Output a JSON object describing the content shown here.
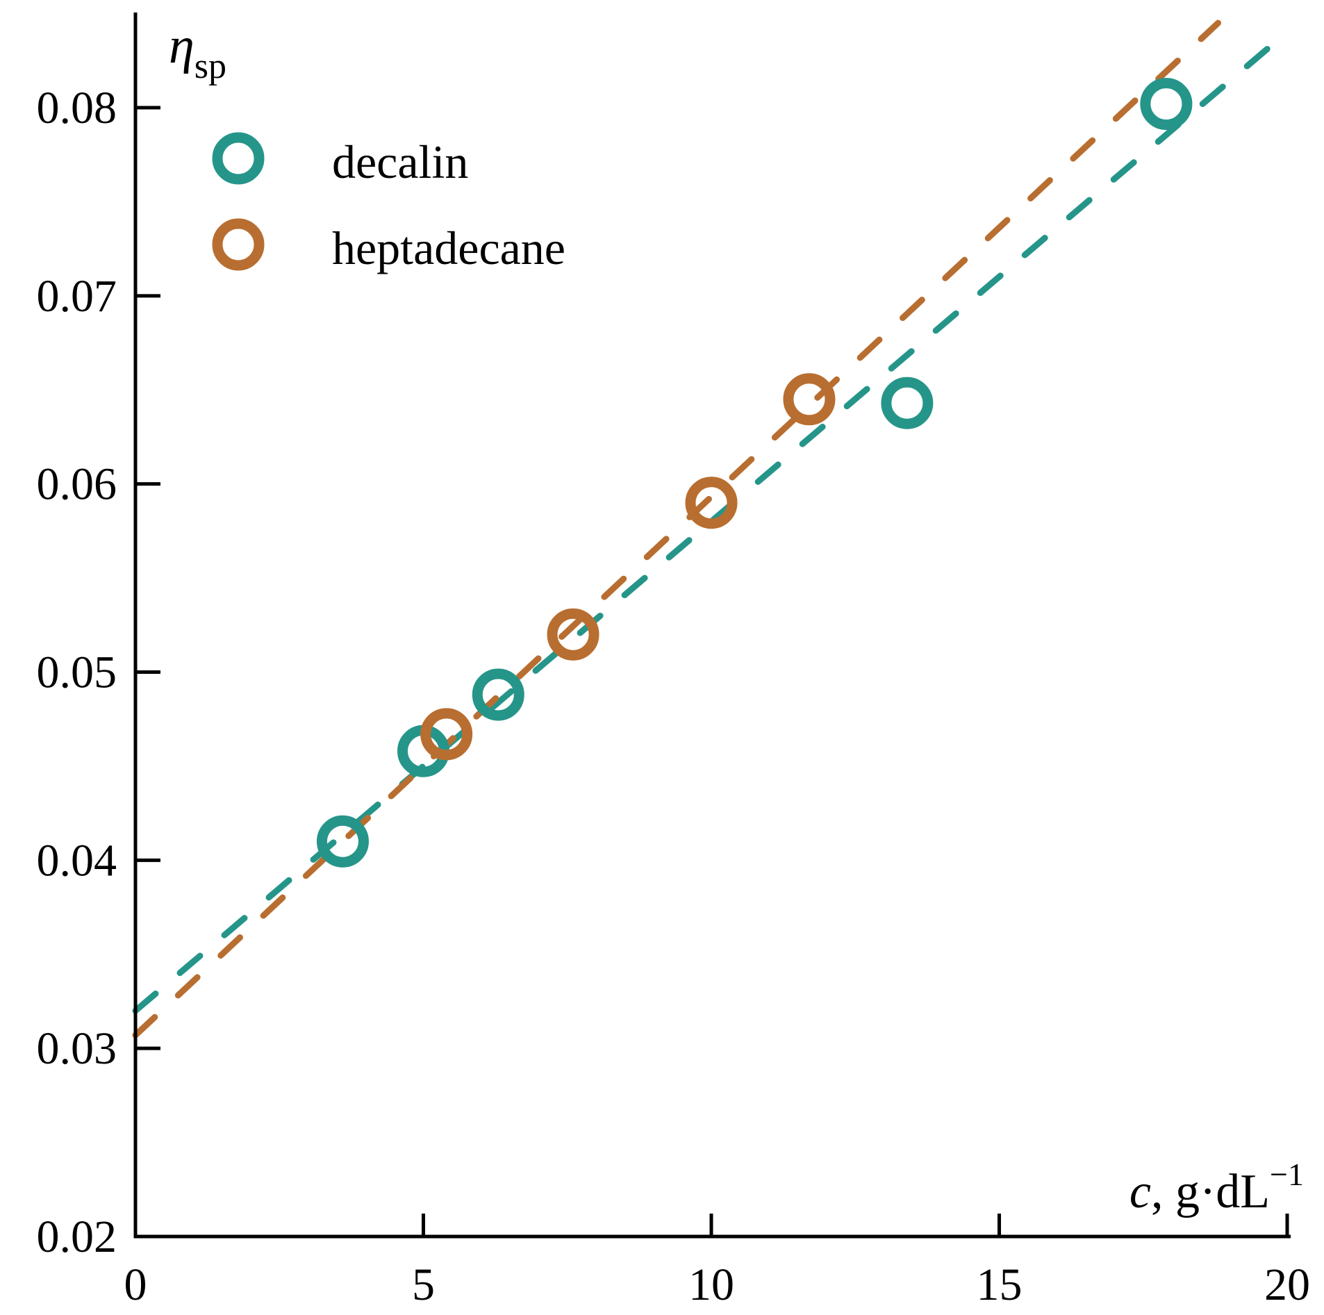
{
  "chart_data": {
    "type": "scatter",
    "xlabel": {
      "var": "c",
      "sep": ", ",
      "unit": "g·dL",
      "exp": "−1"
    },
    "ylabel": {
      "var": "η",
      "sub": "sp"
    },
    "xlim": [
      0,
      20
    ],
    "ylim": [
      0.02,
      0.085
    ],
    "xticks": [
      0,
      5,
      10,
      15,
      20
    ],
    "xtick_labels": [
      "0",
      "5",
      "10",
      "15",
      "20"
    ],
    "yticks": [
      0.02,
      0.03,
      0.04,
      0.05,
      0.06,
      0.07,
      0.08
    ],
    "ytick_labels": [
      "0.02",
      "0.03",
      "0.04",
      "0.05",
      "0.06",
      "0.07",
      "0.08"
    ],
    "grid": false,
    "legend_position": "top-left",
    "series": [
      {
        "name": "decalin",
        "color": "#25958a",
        "marker": "open-circle",
        "x": [
          3.6,
          5.0,
          6.3,
          13.4,
          17.9
        ],
        "y": [
          0.041,
          0.0458,
          0.0488,
          0.0643,
          0.0802
        ],
        "fit": {
          "style": "dashed",
          "x": [
            0,
            19.8
          ],
          "y": [
            0.032,
            0.0835
          ]
        }
      },
      {
        "name": "heptadecane",
        "color": "#b86e30",
        "marker": "open-circle",
        "x": [
          5.4,
          7.6,
          10.0,
          11.7
        ],
        "y": [
          0.0467,
          0.052,
          0.059,
          0.0645
        ],
        "fit": {
          "style": "dashed",
          "x": [
            0,
            18.8
          ],
          "y": [
            0.0307,
            0.0845
          ]
        }
      }
    ]
  }
}
